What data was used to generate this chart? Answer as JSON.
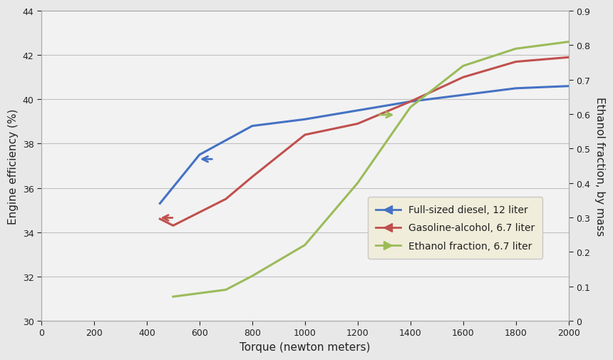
{
  "xlabel": "Torque (newton meters)",
  "ylabel_left": "Engine efficiency (%)",
  "ylabel_right": "Ethanol fraction, by mass",
  "xlim": [
    0,
    2000
  ],
  "ylim_left": [
    30,
    44
  ],
  "ylim_right": [
    0,
    0.9
  ],
  "xticks": [
    0,
    200,
    400,
    600,
    800,
    1000,
    1200,
    1400,
    1600,
    1800,
    2000
  ],
  "yticks_left": [
    30,
    32,
    34,
    36,
    38,
    40,
    42,
    44
  ],
  "yticks_right": [
    0,
    0.1,
    0.2,
    0.3,
    0.4,
    0.5,
    0.6,
    0.7,
    0.8,
    0.9
  ],
  "diesel_x": [
    450,
    600,
    800,
    1000,
    1050,
    1200,
    1400,
    1600,
    1800,
    2000
  ],
  "diesel_y": [
    35.3,
    37.5,
    38.8,
    39.1,
    39.2,
    39.5,
    39.9,
    40.2,
    40.5,
    40.6
  ],
  "gasoline_x": [
    450,
    500,
    700,
    800,
    1000,
    1200,
    1400,
    1600,
    1800,
    2000
  ],
  "gasoline_y": [
    34.6,
    34.3,
    35.5,
    36.5,
    38.4,
    38.9,
    39.9,
    41.0,
    41.7,
    41.9
  ],
  "ethanol_x": [
    500,
    700,
    800,
    1000,
    1200,
    1400,
    1600,
    1800,
    2000
  ],
  "ethanol_y": [
    0.07,
    0.09,
    0.13,
    0.22,
    0.4,
    0.62,
    0.74,
    0.79,
    0.81
  ],
  "diesel_color": "#4472C4",
  "gasoline_color": "#C0504D",
  "ethanol_color": "#9BBB59",
  "plot_bg": "#F2F2F2",
  "fig_bg": "#E8E8E8",
  "grid_color": "#C0C0C0",
  "legend_labels": [
    "Full-sized diesel, 12 liter",
    "Gasoline-alcohol, 6.7 liter",
    "Ethanol fraction, 6.7 liter"
  ],
  "legend_bg": "#F0EDDB",
  "legend_edge": "#C8C8C8",
  "ann_diesel_x": 650,
  "ann_diesel_y": 37.3,
  "ann_gasoline_x": 500,
  "ann_gasoline_y": 34.65,
  "ann_ethanol_x": 1280,
  "ann_ethanol_y": 39.3
}
